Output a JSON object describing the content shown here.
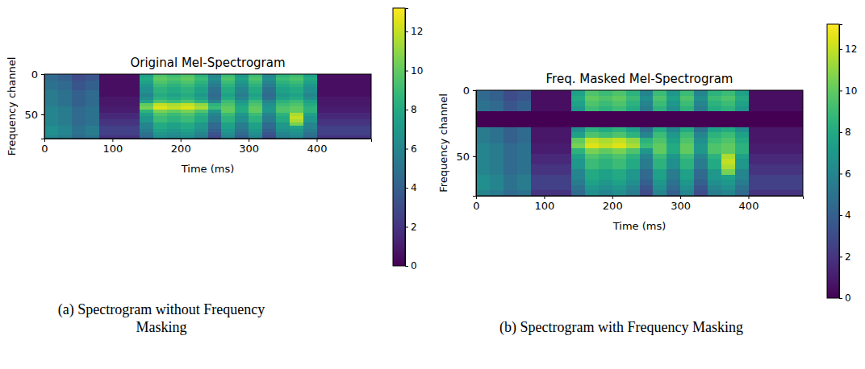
{
  "chart_data": [
    {
      "type": "heatmap",
      "title": "Original Mel-Spectrogram",
      "x_label": "Time (ms)",
      "y_label": "Frequency channel",
      "caption": "(a) Spectrogram without Frequency Masking",
      "xlim": [
        0,
        480
      ],
      "ylim": [
        80,
        0
      ],
      "xticks": [
        0,
        100,
        200,
        300,
        400
      ],
      "yticks": [
        0,
        50
      ],
      "xbins": [
        0,
        20,
        40,
        60,
        80,
        100,
        120,
        140,
        160,
        180,
        200,
        220,
        240,
        260,
        280,
        300,
        320,
        340,
        360,
        380,
        400,
        420,
        440,
        460,
        480
      ],
      "ybins": [
        0,
        4,
        8,
        12,
        16,
        20,
        24,
        28,
        32,
        36,
        40,
        44,
        48,
        52,
        56,
        60,
        64,
        68,
        72,
        76,
        80
      ],
      "cells": [
        [
          4.5,
          4,
          3,
          3.5,
          0.5,
          0.5,
          0.5,
          7.5,
          9.5,
          9,
          9.5,
          8.5,
          6,
          9,
          7,
          9,
          6,
          8.5,
          9,
          7.5,
          0.5,
          0.5,
          0.5,
          0.5
        ],
        [
          4.5,
          4,
          3,
          3.5,
          0.5,
          0.5,
          0.5,
          8,
          10,
          9.5,
          10,
          9,
          6.5,
          9.5,
          7.5,
          9.5,
          6.5,
          9,
          9.5,
          8,
          0.5,
          0.5,
          0.5,
          0.5
        ],
        [
          5,
          4.5,
          3.5,
          4,
          0.5,
          0.5,
          0.5,
          7.5,
          9.5,
          9,
          9.5,
          8.5,
          6,
          9,
          7,
          9,
          6,
          8.5,
          9,
          7.5,
          0.5,
          0.5,
          0.5,
          0.5
        ],
        [
          5,
          4.5,
          3.5,
          4,
          0.5,
          0.5,
          0.5,
          7,
          9,
          8.5,
          9,
          8,
          5.5,
          8.5,
          6.5,
          8.5,
          5.5,
          8,
          8.5,
          7,
          0.5,
          0.5,
          0.5,
          0.5
        ],
        [
          5,
          4.5,
          3.5,
          4,
          0.5,
          0.5,
          0.5,
          6.5,
          8.5,
          8,
          8.5,
          7.5,
          5,
          8,
          6,
          8,
          5,
          7.5,
          8,
          6.5,
          0.5,
          0.5,
          0.5,
          0.5
        ],
        [
          5.5,
          5,
          4,
          4.5,
          0.5,
          0.5,
          0.5,
          6.5,
          8.5,
          8,
          8.5,
          7.5,
          5,
          8,
          6,
          8,
          5,
          7.5,
          8,
          6.5,
          0.5,
          0.5,
          0.5,
          0.5
        ],
        [
          5.5,
          5,
          4,
          4.5,
          0.5,
          0.5,
          0.5,
          6,
          8,
          7.5,
          8,
          7,
          4.5,
          7.5,
          5.5,
          7.5,
          4.5,
          7,
          7.5,
          6,
          0.5,
          0.5,
          0.5,
          0.5
        ],
        [
          5.5,
          5,
          4,
          4.5,
          0.8,
          0.8,
          0.8,
          6.5,
          8.5,
          8,
          8.5,
          7.5,
          5,
          8,
          6,
          8,
          5,
          7.5,
          8,
          6.5,
          0.8,
          0.8,
          0.8,
          0.8
        ],
        [
          5.5,
          5,
          4,
          4.5,
          0.8,
          0.8,
          0.8,
          7.5,
          9.5,
          9,
          9.5,
          8.5,
          6,
          9,
          7,
          9,
          6,
          8.5,
          9,
          7.5,
          0.8,
          0.8,
          0.8,
          0.8
        ],
        [
          5.5,
          5,
          4,
          4.5,
          0.8,
          0.8,
          0.8,
          10,
          12,
          11.5,
          12,
          11,
          8.5,
          9.5,
          7.5,
          9.5,
          6.5,
          9,
          9.5,
          8,
          0.8,
          0.8,
          0.8,
          0.8
        ],
        [
          6,
          5.5,
          4.5,
          5,
          1,
          1,
          1,
          10.5,
          12.5,
          12,
          12.5,
          11.5,
          9,
          10,
          8,
          10,
          7,
          9.5,
          10,
          8.5,
          1,
          1,
          1,
          1
        ],
        [
          6,
          5.5,
          4.5,
          5,
          1,
          1,
          1,
          8.5,
          10.5,
          10,
          10.5,
          9.5,
          7,
          10,
          8,
          10,
          7,
          9.5,
          10,
          8.5,
          1,
          1,
          1,
          1
        ],
        [
          6,
          5.5,
          4.5,
          5,
          1.5,
          1.5,
          1.5,
          7.5,
          9.5,
          9,
          9.5,
          8.5,
          6,
          9,
          7,
          9,
          6,
          8.5,
          11.5,
          7.5,
          1.5,
          1.5,
          1.5,
          1.5
        ],
        [
          6,
          5.5,
          4.5,
          5,
          1.5,
          1.5,
          1.5,
          7,
          9,
          8.5,
          9,
          8,
          5.5,
          8.5,
          6.5,
          8.5,
          5.5,
          8,
          12,
          7,
          1.5,
          1.5,
          1.5,
          1.5
        ],
        [
          6,
          5.5,
          4.5,
          5,
          2,
          2,
          2,
          7,
          9,
          8.5,
          9,
          8,
          5.5,
          8.5,
          6.5,
          8.5,
          5.5,
          8,
          11.5,
          7,
          2,
          2,
          2,
          2
        ],
        [
          6,
          5.5,
          4.5,
          5,
          2,
          2,
          2,
          6,
          8,
          7.5,
          8,
          7,
          4.5,
          7.5,
          5.5,
          7.5,
          4.5,
          7,
          10.5,
          6,
          2,
          2,
          2,
          2
        ],
        [
          6.5,
          6,
          5,
          5.5,
          2.5,
          2.5,
          2.5,
          6,
          8,
          7.5,
          8,
          7,
          4.5,
          7.5,
          5.5,
          7.5,
          4.5,
          7,
          7.5,
          6,
          2.5,
          2.5,
          2.5,
          2.5
        ],
        [
          6.5,
          6,
          5,
          5.5,
          2.5,
          2.5,
          2.5,
          5.5,
          7.5,
          7,
          7.5,
          6.5,
          4,
          7,
          5,
          7,
          4,
          6.5,
          7,
          5.5,
          2.5,
          2.5,
          2.5,
          2.5
        ],
        [
          6.5,
          6,
          5,
          5.5,
          2.5,
          2.5,
          2.5,
          5,
          7,
          6.5,
          7,
          6,
          3.5,
          6.5,
          4.5,
          6.5,
          3.5,
          6,
          6.5,
          5,
          2.5,
          2.5,
          2.5,
          2.5
        ],
        [
          6,
          5.5,
          4.5,
          5,
          2,
          2,
          2,
          4.5,
          6.5,
          6,
          6.5,
          5.5,
          3,
          6,
          4,
          6,
          3,
          5.5,
          6,
          4.5,
          2,
          2,
          2,
          2
        ]
      ],
      "colorbar": {
        "lim": [
          0,
          13.2
        ],
        "ticks": [
          0,
          2,
          4,
          6,
          8,
          10,
          12
        ]
      }
    },
    {
      "type": "heatmap",
      "title": "Freq. Masked Mel-Spectrogram",
      "x_label": "Time (ms)",
      "y_label": "Frequency channel",
      "caption": "(b) Spectrogram with Frequency Masking",
      "xlim": [
        0,
        480
      ],
      "ylim": [
        80,
        0
      ],
      "xticks": [
        0,
        100,
        200,
        300,
        400
      ],
      "yticks": [
        0,
        50
      ],
      "xbins": [
        0,
        20,
        40,
        60,
        80,
        100,
        120,
        140,
        160,
        180,
        200,
        220,
        240,
        260,
        280,
        300,
        320,
        340,
        360,
        380,
        400,
        420,
        440,
        460,
        480
      ],
      "ybins": [
        0,
        4,
        8,
        12,
        16,
        20,
        24,
        28,
        32,
        36,
        40,
        44,
        48,
        52,
        56,
        60,
        64,
        68,
        72,
        76,
        80
      ],
      "cells": [
        [
          4.5,
          4,
          3,
          3.5,
          0.5,
          0.5,
          0.5,
          7.5,
          9.5,
          9,
          9.5,
          8.5,
          6,
          9,
          7,
          9,
          6,
          8.5,
          9,
          7.5,
          0.5,
          0.5,
          0.5,
          0.5
        ],
        [
          4.5,
          4,
          3,
          3.5,
          0.5,
          0.5,
          0.5,
          8,
          10,
          9.5,
          10,
          9,
          6.5,
          9.5,
          7.5,
          9.5,
          6.5,
          9,
          9.5,
          8,
          0.5,
          0.5,
          0.5,
          0.5
        ],
        [
          5,
          4.5,
          3.5,
          4,
          0.5,
          0.5,
          0.5,
          7.5,
          9.5,
          9,
          9.5,
          8.5,
          6,
          9,
          7,
          9,
          6,
          8.5,
          9,
          7.5,
          0.5,
          0.5,
          0.5,
          0.5
        ],
        [
          5,
          4.5,
          3.5,
          4,
          0.5,
          0.5,
          0.5,
          7,
          9,
          8.5,
          9,
          8,
          5.5,
          8.5,
          6.5,
          8.5,
          5.5,
          8,
          8.5,
          7,
          0.5,
          0.5,
          0.5,
          0.5
        ],
        [
          0,
          0,
          0,
          0,
          0,
          0,
          0,
          0,
          0,
          0,
          0,
          0,
          0,
          0,
          0,
          0,
          0,
          0,
          0,
          0,
          0,
          0,
          0,
          0
        ],
        [
          0,
          0,
          0,
          0,
          0,
          0,
          0,
          0,
          0,
          0,
          0,
          0,
          0,
          0,
          0,
          0,
          0,
          0,
          0,
          0,
          0,
          0,
          0,
          0
        ],
        [
          0,
          0,
          0,
          0,
          0,
          0,
          0,
          0,
          0,
          0,
          0,
          0,
          0,
          0,
          0,
          0,
          0,
          0,
          0,
          0,
          0,
          0,
          0,
          0
        ],
        [
          5.5,
          5,
          4,
          4.5,
          0.8,
          0.8,
          0.8,
          6.5,
          8.5,
          8,
          8.5,
          7.5,
          5,
          8,
          6,
          8,
          5,
          7.5,
          8,
          6.5,
          0.8,
          0.8,
          0.8,
          0.8
        ],
        [
          5.5,
          5,
          4,
          4.5,
          0.8,
          0.8,
          0.8,
          7.5,
          9.5,
          9,
          9.5,
          8.5,
          6,
          9,
          7,
          9,
          6,
          8.5,
          9,
          7.5,
          0.8,
          0.8,
          0.8,
          0.8
        ],
        [
          5.5,
          5,
          4,
          4.5,
          0.8,
          0.8,
          0.8,
          10,
          12,
          11.5,
          12,
          11,
          8.5,
          9.5,
          7.5,
          9.5,
          6.5,
          9,
          9.5,
          8,
          0.8,
          0.8,
          0.8,
          0.8
        ],
        [
          6,
          5.5,
          4.5,
          5,
          1,
          1,
          1,
          10.5,
          12.5,
          12,
          12.5,
          11.5,
          9,
          10,
          8,
          10,
          7,
          9.5,
          10,
          8.5,
          1,
          1,
          1,
          1
        ],
        [
          6,
          5.5,
          4.5,
          5,
          1,
          1,
          1,
          8.5,
          10.5,
          10,
          10.5,
          9.5,
          7,
          10,
          8,
          10,
          7,
          9.5,
          10,
          8.5,
          1,
          1,
          1,
          1
        ],
        [
          6,
          5.5,
          4.5,
          5,
          1.5,
          1.5,
          1.5,
          7.5,
          9.5,
          9,
          9.5,
          8.5,
          6,
          9,
          7,
          9,
          6,
          8.5,
          11.5,
          7.5,
          1.5,
          1.5,
          1.5,
          1.5
        ],
        [
          6,
          5.5,
          4.5,
          5,
          1.5,
          1.5,
          1.5,
          7,
          9,
          8.5,
          9,
          8,
          5.5,
          8.5,
          6.5,
          8.5,
          5.5,
          8,
          12,
          7,
          1.5,
          1.5,
          1.5,
          1.5
        ],
        [
          6,
          5.5,
          4.5,
          5,
          2,
          2,
          2,
          7,
          9,
          8.5,
          9,
          8,
          5.5,
          8.5,
          6.5,
          8.5,
          5.5,
          8,
          11.5,
          7,
          2,
          2,
          2,
          2
        ],
        [
          6,
          5.5,
          4.5,
          5,
          2,
          2,
          2,
          6,
          8,
          7.5,
          8,
          7,
          4.5,
          7.5,
          5.5,
          7.5,
          4.5,
          7,
          10.5,
          6,
          2,
          2,
          2,
          2
        ],
        [
          6.5,
          6,
          5,
          5.5,
          2.5,
          2.5,
          2.5,
          6,
          8,
          7.5,
          8,
          7,
          4.5,
          7.5,
          5.5,
          7.5,
          4.5,
          7,
          7.5,
          6,
          2.5,
          2.5,
          2.5,
          2.5
        ],
        [
          6.5,
          6,
          5,
          5.5,
          2.5,
          2.5,
          2.5,
          5.5,
          7.5,
          7,
          7.5,
          6.5,
          4,
          7,
          5,
          7,
          4,
          6.5,
          7,
          5.5,
          2.5,
          2.5,
          2.5,
          2.5
        ],
        [
          6.5,
          6,
          5,
          5.5,
          2.5,
          2.5,
          2.5,
          5,
          7,
          6.5,
          7,
          6,
          3.5,
          6.5,
          4.5,
          6.5,
          3.5,
          6,
          6.5,
          5,
          2.5,
          2.5,
          2.5,
          2.5
        ],
        [
          6,
          5.5,
          4.5,
          5,
          2,
          2,
          2,
          4.5,
          6.5,
          6,
          6.5,
          5.5,
          3,
          6,
          4,
          6,
          3,
          5.5,
          6,
          4.5,
          2,
          2,
          2,
          2
        ]
      ],
      "colorbar": {
        "lim": [
          0,
          13.2
        ],
        "ticks": [
          0,
          2,
          4,
          6,
          8,
          10,
          12
        ]
      }
    }
  ]
}
